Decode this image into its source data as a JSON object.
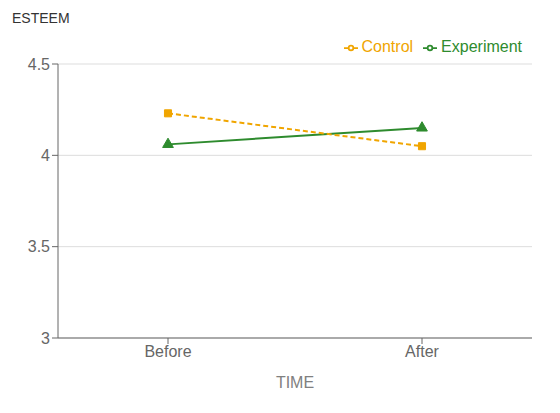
{
  "chart_data": {
    "type": "line",
    "xlabel": "TIME",
    "ylabel": "ESTEEM",
    "categories": [
      "Before",
      "After"
    ],
    "series": [
      {
        "name": "Experiment",
        "color": "#2e8b2e",
        "values": [
          4.06,
          4.15
        ],
        "marker": "triangle",
        "line_style": "solid"
      },
      {
        "name": "Control",
        "color": "#f0a500",
        "values": [
          4.23,
          4.05
        ],
        "marker": "square",
        "line_style": "dashed"
      }
    ],
    "ylim": [
      3,
      4.5
    ],
    "yticks": [
      3,
      3.5,
      4,
      4.5
    ],
    "grid": true,
    "legend": "upper right"
  }
}
